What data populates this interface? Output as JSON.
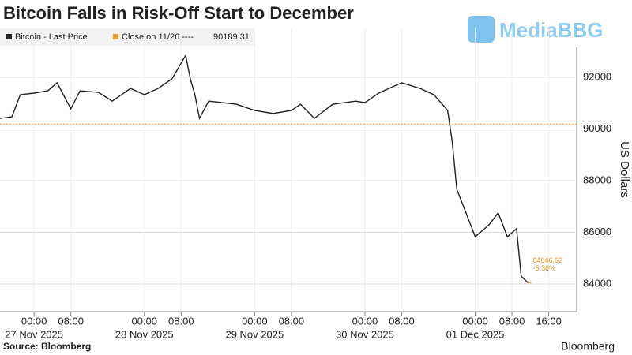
{
  "chart_data": {
    "type": "line",
    "title": "Bitcoin Falls in Risk-Off Start to December",
    "watermark": "MediaBBG",
    "y_axis_label": "US Dollars",
    "source": "Source: Bloomberg",
    "brand": "Bloomberg",
    "x": [
      "2025-11-26T16:35",
      "2025-11-26T19:10",
      "2025-11-26T21:00",
      "2025-11-27T00:00",
      "2025-11-27T03:00",
      "2025-11-27T05:00",
      "2025-11-27T08:00",
      "2025-11-27T10:00",
      "2025-11-27T14:00",
      "2025-11-27T17:00",
      "2025-11-27T21:00",
      "2025-11-28T00:00",
      "2025-11-28T03:00",
      "2025-11-28T06:00",
      "2025-11-28T09:00",
      "2025-11-28T10:00",
      "2025-11-28T11:00",
      "2025-11-28T12:00",
      "2025-11-28T14:00",
      "2025-11-28T20:00",
      "2025-11-29T00:00",
      "2025-11-29T04:00",
      "2025-11-29T08:00",
      "2025-11-29T10:00",
      "2025-11-29T13:00",
      "2025-11-29T17:00",
      "2025-11-29T22:00",
      "2025-11-30T00:00",
      "2025-11-30T03:00",
      "2025-11-30T08:00",
      "2025-11-30T12:00",
      "2025-11-30T15:00",
      "2025-11-30T18:00",
      "2025-11-30T19:00",
      "2025-11-30T20:00",
      "2025-11-30T22:00",
      "2025-12-01T00:00",
      "2025-12-01T03:00",
      "2025-12-01T05:00",
      "2025-12-01T07:00",
      "2025-12-01T09:00",
      "2025-12-01T10:00",
      "2025-12-01T11:30"
    ],
    "series": [
      {
        "name": "Bitcoin - Last Price",
        "color": "#222222",
        "values": [
          90410,
          90470,
          91330,
          91390,
          91480,
          91790,
          90780,
          91480,
          91420,
          91080,
          91570,
          91330,
          91570,
          91940,
          92850,
          91940,
          91330,
          90410,
          91080,
          90960,
          90720,
          90600,
          90720,
          90960,
          90410,
          90960,
          91080,
          91020,
          91390,
          91790,
          91570,
          91330,
          90720,
          89500,
          87660,
          86750,
          85830,
          86290,
          86750,
          85830,
          86140,
          84300,
          84046.62
        ],
        "last_value": 84046.62,
        "change": {
          "value": -5.36,
          "label": "-5.36%"
        }
      }
    ],
    "reference_line": {
      "label": "Close on 11/26 ----",
      "value": 90189.31,
      "color": "#f0a030"
    },
    "xlim": [
      "2025-11-26T16:35",
      "2025-12-01T22:05"
    ],
    "xticks": [
      {
        "value": "2025-11-27T00:00",
        "label": "00:00"
      },
      {
        "value": "2025-11-27T08:00",
        "label": "08:00"
      },
      {
        "value": "2025-11-28T00:00",
        "label": "00:00"
      },
      {
        "value": "2025-11-28T08:00",
        "label": "08:00"
      },
      {
        "value": "2025-11-29T00:00",
        "label": "00:00"
      },
      {
        "value": "2025-11-29T08:00",
        "label": "08:00"
      },
      {
        "value": "2025-11-30T00:00",
        "label": "00:00"
      },
      {
        "value": "2025-11-30T08:00",
        "label": "08:00"
      },
      {
        "value": "2025-12-01T00:00",
        "label": "00:00"
      },
      {
        "value": "2025-12-01T08:00",
        "label": "08:00"
      },
      {
        "value": "2025-12-01T16:00",
        "label": "16:00"
      }
    ],
    "date_labels": [
      {
        "value": "2025-11-27T00:00",
        "label": "27 Nov 2025"
      },
      {
        "value": "2025-11-28T00:00",
        "label": "28 Nov 2025"
      },
      {
        "value": "2025-11-29T00:00",
        "label": "29 Nov 2025"
      },
      {
        "value": "2025-11-30T00:00",
        "label": "30 Nov 2025"
      },
      {
        "value": "2025-12-01T00:00",
        "label": "01 Dec 2025"
      }
    ],
    "ylim": [
      82930,
      93925
    ],
    "yticks": [
      84000,
      86000,
      88000,
      90000,
      92000
    ],
    "grid": true
  }
}
